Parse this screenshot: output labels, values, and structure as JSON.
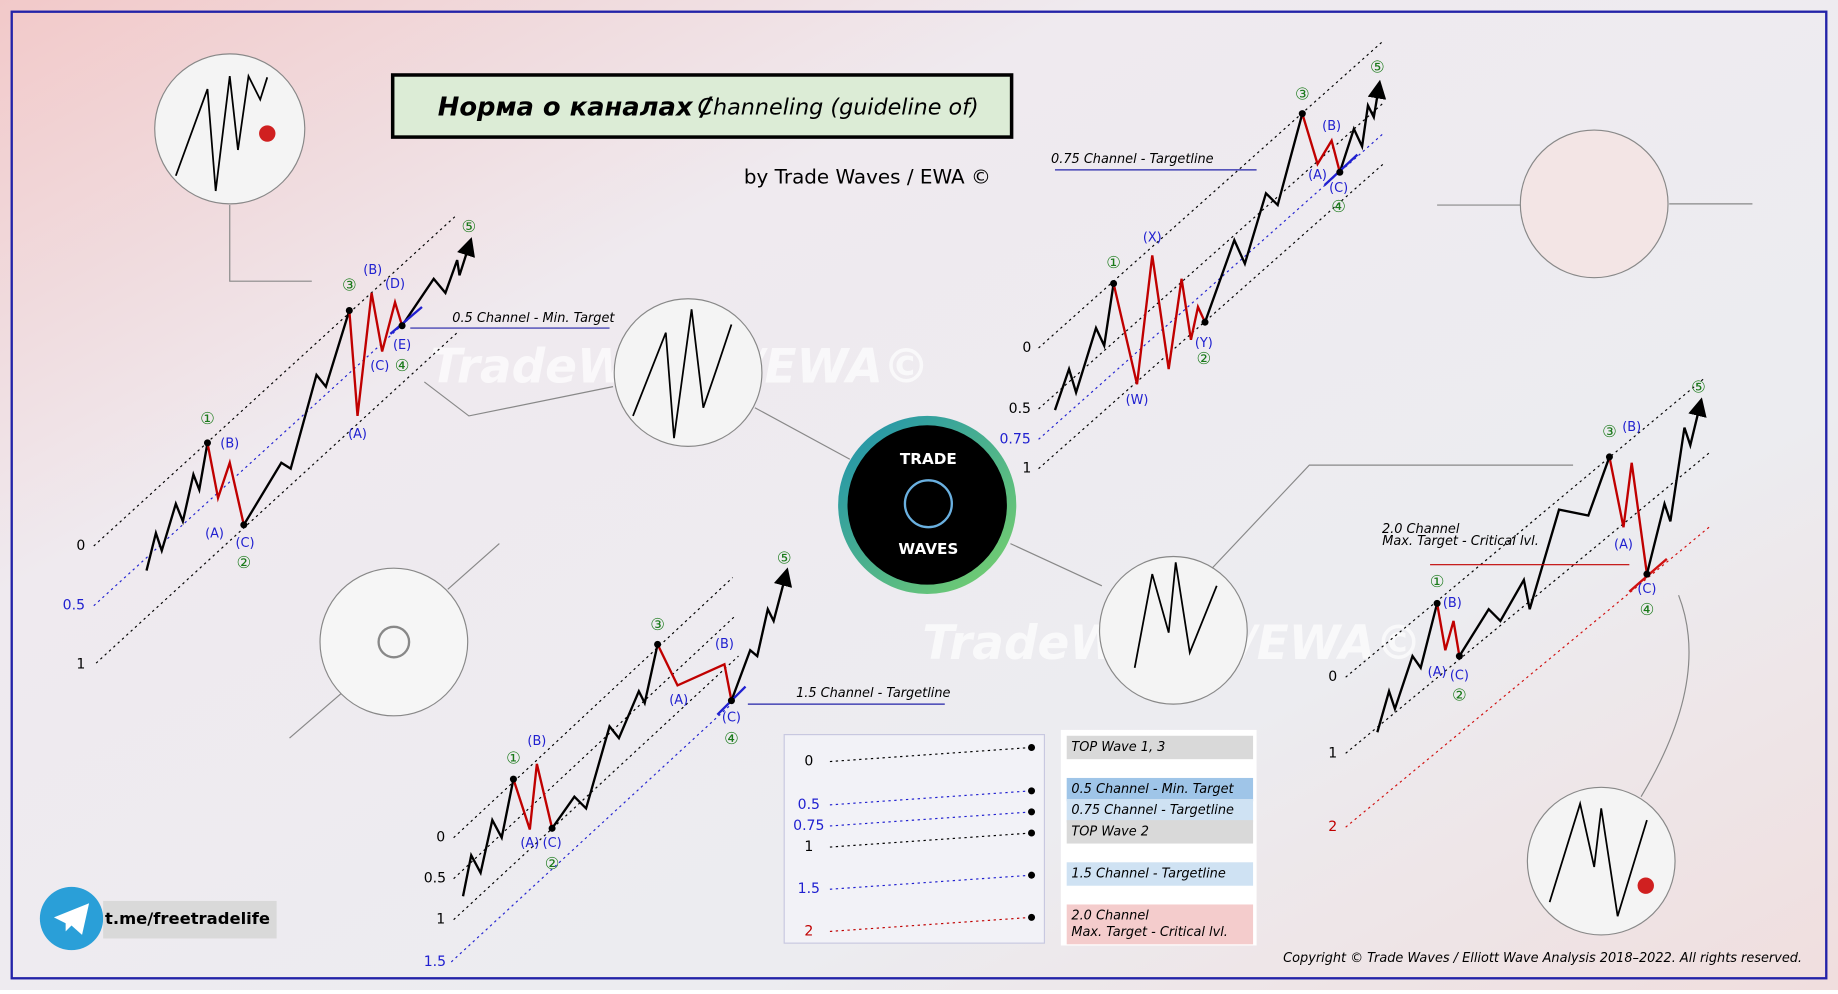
{
  "header": {
    "title_ru": "Норма о каналах /",
    "title_en": "Channeling (guideline of)",
    "author": "by Trade Waves / EWA ©"
  },
  "watermark": "TradeWaves/EWA©",
  "logo": {
    "top": "TRADE",
    "bottom": "WAVES"
  },
  "panels": [
    {
      "levels": [
        "0",
        "0.5",
        "1"
      ],
      "channel_label": [
        "0.5 Channel - Min. Target"
      ],
      "waves": [
        "①",
        "(B)",
        "(A)",
        "(C)",
        "②",
        "③",
        "(B)",
        "(D)",
        "(C)",
        "(E)",
        "④",
        "(A)",
        "⑤"
      ]
    },
    {
      "levels": [
        "0",
        "0.5",
        "1",
        "1.5"
      ],
      "channel_label": [
        "1.5 Channel - Targetline"
      ],
      "waves": [
        "①",
        "(B)",
        "(A)",
        "(C)",
        "②",
        "③",
        "(A)",
        "(B)",
        "(C)",
        "④",
        "⑤"
      ]
    },
    {
      "levels": [
        "0",
        "0.5",
        "0.75",
        "1"
      ],
      "channel_label": [
        "0.75 Channel - Targetline"
      ],
      "waves": [
        "①",
        "(X)",
        "(W)",
        "(Y)",
        "②",
        "③",
        "(B)",
        "(A)",
        "(C)",
        "④",
        "⑤"
      ]
    },
    {
      "levels": [
        "0",
        "1",
        "2"
      ],
      "channel_label": [
        "2.0 Channel",
        "Max. Target - Critical lvl."
      ],
      "waves": [
        "①",
        "(B)",
        "(A)",
        "(C)",
        "②",
        "③",
        "(B)",
        "(A)",
        "(C)",
        "④",
        "⑤"
      ]
    }
  ],
  "legend": [
    {
      "level": "0",
      "lines": [
        "TOP Wave 1, 3"
      ]
    },
    {
      "level": "0.5",
      "lines": [
        "0.5 Channel - Min. Target"
      ]
    },
    {
      "level": "0.75",
      "lines": [
        "0.75 Channel - Targetline"
      ]
    },
    {
      "level": "1",
      "lines": [
        "TOP Wave 2"
      ]
    },
    {
      "level": "1.5",
      "lines": [
        "1.5 Channel - Targetline"
      ]
    },
    {
      "level": "2",
      "lines": [
        "2.0 Channel",
        "Max. Target - Critical lvl."
      ]
    }
  ],
  "contact": "t.me/freetradelife",
  "copyright": "Copyright © Trade Waves / Elliott Wave Analysis 2018–2022. All rights reserved."
}
